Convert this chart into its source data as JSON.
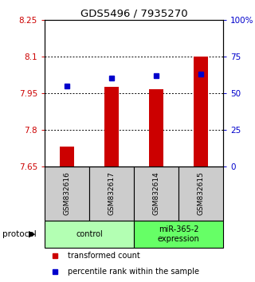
{
  "title": "GDS5496 / 7935270",
  "samples": [
    "GSM832616",
    "GSM832617",
    "GSM832614",
    "GSM832615"
  ],
  "groups": [
    {
      "name": "control",
      "color": "#b3ffb3",
      "samples": [
        0,
        1
      ]
    },
    {
      "name": "miR-365-2\nexpression",
      "color": "#66ff66",
      "samples": [
        2,
        3
      ]
    }
  ],
  "transformed_counts": [
    7.73,
    7.975,
    7.965,
    8.1
  ],
  "percentile_ranks": [
    55,
    60,
    62,
    63
  ],
  "bar_bottom": 7.65,
  "ylim": [
    7.65,
    8.25
  ],
  "yticks_left": [
    7.65,
    7.8,
    7.95,
    8.1,
    8.25
  ],
  "yticks_right": [
    0,
    25,
    50,
    75,
    100
  ],
  "left_color": "#cc0000",
  "right_color": "#0000cc",
  "bar_color": "#cc0000",
  "dot_color": "#0000cc",
  "bg_color": "#ffffff",
  "sample_bg": "#cccccc",
  "gridline_ticks": [
    7.8,
    7.95,
    8.1
  ]
}
